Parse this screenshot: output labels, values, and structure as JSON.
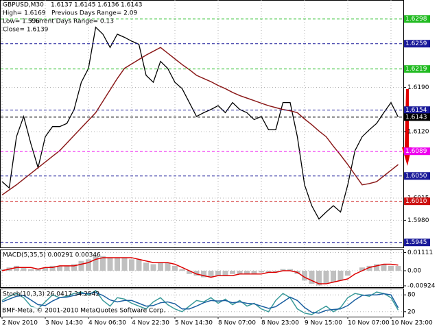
{
  "chart_data": [
    {
      "type": "line",
      "title": "GBPUSD,M30",
      "ohlc": [
        1.6137,
        1.6145,
        1.6136,
        1.6143
      ],
      "annotations": [
        "High= 1.6169",
        "Previous Days Range= 2.09",
        "Low= 1.596",
        "Current Days Range= 0.13",
        "Close= 1.6139"
      ],
      "footer": "BMF-Meta, © 2001-2010 MetaQuotes Software Corp.",
      "categories": [
        "2 Nov 2010",
        null,
        null,
        null,
        null,
        null,
        "3 Nov 14:30",
        null,
        null,
        null,
        null,
        null,
        "4 Nov 06:30",
        null,
        null,
        null,
        null,
        null,
        "4 Nov 22:30",
        null,
        null,
        null,
        null,
        null,
        "5 Nov 14:30",
        null,
        null,
        null,
        null,
        null,
        "8 Nov 07:00",
        null,
        null,
        null,
        null,
        null,
        "8 Nov 23:00",
        null,
        null,
        null,
        null,
        null,
        "9 Nov 15:00",
        null,
        null,
        null,
        null,
        null,
        "10 Nov 07:00",
        null,
        null,
        null,
        null,
        null,
        "10 Nov 23:00",
        null
      ],
      "series": [
        {
          "color": "#000000",
          "values": [
            1.6041,
            1.6031,
            1.6112,
            1.6144,
            1.6101,
            1.6063,
            1.6112,
            1.6128,
            1.6128,
            1.6133,
            1.6155,
            1.6198,
            1.622,
            1.6285,
            1.6274,
            1.6253,
            1.6274,
            1.6269,
            1.6263,
            1.6258,
            1.6209,
            1.6198,
            1.6231,
            1.622,
            1.6198,
            1.6188,
            1.6166,
            1.6144,
            1.615,
            1.6155,
            1.6161,
            1.615,
            1.6166,
            1.6155,
            1.615,
            1.6139,
            1.6144,
            1.6123,
            1.6123,
            1.6166,
            1.6166,
            1.6112,
            1.6036,
            1.6003,
            1.5982,
            1.5993,
            1.6003,
            1.5993,
            1.6036,
            1.609,
            1.6112,
            1.6123,
            1.6133,
            1.615,
            1.6166,
            1.6143
          ]
        },
        {
          "color": "#8b1a1a",
          "values": [
            1.602,
            1.6028,
            1.6036,
            1.6045,
            1.6054,
            1.6063,
            1.6072,
            1.6081,
            1.609,
            1.6102,
            1.6114,
            1.6126,
            1.6138,
            1.615,
            1.6168,
            1.6186,
            1.6204,
            1.622,
            1.6227,
            1.6234,
            1.6241,
            1.6247,
            1.6253,
            1.6244,
            1.6235,
            1.6226,
            1.6218,
            1.6209,
            1.6204,
            1.6199,
            1.6193,
            1.6188,
            1.6182,
            1.6177,
            1.6173,
            1.6169,
            1.6165,
            1.6161,
            1.6158,
            1.6155,
            1.6153,
            1.615,
            1.614,
            1.6131,
            1.6121,
            1.6112,
            1.6097,
            1.6083,
            1.6068,
            1.6052,
            1.6036,
            1.6038,
            1.6041,
            1.605,
            1.6059,
            1.6068
          ]
        }
      ],
      "ylim": [
        1.5936,
        1.6328
      ],
      "yticks": [
        {
          "value": 1.619,
          "label": "1.6190"
        },
        {
          "value": 1.612,
          "label": "1.6120"
        },
        {
          "value": 1.6015,
          "label": "1.6015"
        },
        {
          "value": 1.598,
          "label": "1.5980"
        }
      ],
      "levels": [
        {
          "value": 1.6298,
          "label": "1.6298",
          "color": "#22bb22"
        },
        {
          "value": 1.6259,
          "label": "1.6259",
          "color": "#1a1a99"
        },
        {
          "value": 1.6219,
          "label": "1.6219",
          "color": "#22bb22"
        },
        {
          "value": 1.6154,
          "label": "1.6154",
          "color": "#1a1a99"
        },
        {
          "value": 1.6143,
          "label": "1.6143",
          "color": "#000000"
        },
        {
          "value": 1.6089,
          "label": "1.6089",
          "color": "#ee00ee"
        },
        {
          "value": 1.605,
          "label": "1.6050",
          "color": "#1a1a99"
        },
        {
          "value": 1.601,
          "label": "1.6010",
          "color": "#cc1111"
        },
        {
          "value": 1.5945,
          "label": "1.5945",
          "color": "#1a1a99"
        }
      ]
    },
    {
      "type": "bar",
      "title": "MACD(5,35,5) 0.00291 0.00346",
      "series": [
        {
          "color": "#c0c0c0",
          "values": [
            0.001,
            0.002,
            0.003,
            0.002,
            0.001,
            0.001,
            0.002,
            0.003,
            0.003,
            0.003,
            0.004,
            0.006,
            0.007,
            0.009,
            0.009,
            0.008,
            0.008,
            0.008,
            0.007,
            0.007,
            0.005,
            0.004,
            0.005,
            0.005,
            0.003,
            0.001,
            -0.002,
            -0.003,
            -0.004,
            -0.004,
            -0.003,
            -0.003,
            -0.002,
            -0.002,
            -0.002,
            -0.002,
            -0.001,
            -0.001,
            -0.001,
            0.001,
            0.001,
            -0.002,
            -0.006,
            -0.008,
            -0.009,
            -0.008,
            -0.007,
            -0.006,
            -0.003,
            0.0,
            0.002,
            0.003,
            0.004,
            0.004,
            0.003,
            0.00291
          ]
        },
        {
          "color": "#dd0000",
          "values": [
            0.0,
            0.001,
            0.002,
            0.002,
            0.002,
            0.001,
            0.002,
            0.002,
            0.003,
            0.003,
            0.003,
            0.004,
            0.005,
            0.007,
            0.008,
            0.008,
            0.008,
            0.008,
            0.008,
            0.007,
            0.006,
            0.005,
            0.005,
            0.005,
            0.004,
            0.002,
            0.0,
            -0.002,
            -0.003,
            -0.004,
            -0.003,
            -0.003,
            -0.003,
            -0.002,
            -0.002,
            -0.002,
            -0.002,
            -0.001,
            -0.001,
            0.0,
            0.0,
            -0.001,
            -0.004,
            -0.006,
            -0.008,
            -0.008,
            -0.007,
            -0.006,
            -0.005,
            -0.002,
            0.0,
            0.002,
            0.003,
            0.004,
            0.004,
            0.00346
          ]
        }
      ],
      "ylim": [
        -0.0105,
        0.0126
      ],
      "yticks": [
        0.01111,
        {
          "value": 0,
          "label": "0.00"
        },
        -0.00924
      ]
    },
    {
      "type": "line",
      "title": "Stoch(10,3,3) 26.0417 34.2542",
      "series": [
        {
          "color": "#3a9a9a",
          "values": [
            60,
            75,
            85,
            70,
            40,
            30,
            55,
            80,
            70,
            75,
            85,
            90,
            80,
            95,
            60,
            40,
            70,
            65,
            50,
            40,
            30,
            55,
            70,
            45,
            30,
            20,
            40,
            60,
            55,
            70,
            50,
            65,
            45,
            60,
            40,
            50,
            30,
            20,
            60,
            85,
            70,
            30,
            15,
            10,
            25,
            40,
            20,
            35,
            70,
            85,
            80,
            75,
            90,
            85,
            70,
            26.0417
          ]
        },
        {
          "color": "#1a5fa0",
          "values": [
            55,
            65,
            75,
            78,
            62,
            45,
            42,
            58,
            70,
            72,
            78,
            85,
            85,
            88,
            78,
            62,
            55,
            60,
            60,
            50,
            40,
            42,
            52,
            55,
            48,
            30,
            30,
            40,
            52,
            60,
            58,
            60,
            52,
            55,
            50,
            48,
            40,
            32,
            38,
            55,
            72,
            60,
            35,
            18,
            15,
            25,
            28,
            30,
            42,
            62,
            78,
            80,
            80,
            84,
            80,
            34.2542
          ]
        }
      ],
      "ylim": [
        0,
        100
      ],
      "yticks": [
        20,
        80
      ]
    }
  ]
}
